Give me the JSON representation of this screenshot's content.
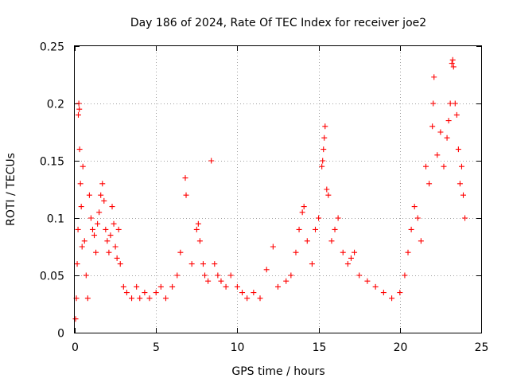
{
  "chart_data": {
    "type": "scatter",
    "title": "Day 186 of 2024, Rate Of TEC Index for receiver joe2",
    "xlabel": "GPS time / hours",
    "ylabel": "ROTI / TECUs",
    "xlim": [
      0,
      25
    ],
    "ylim": [
      0,
      0.25
    ],
    "xticks": [
      0,
      5,
      10,
      15,
      20,
      25
    ],
    "xtick_labels": [
      "0",
      "5",
      "10",
      "15",
      "20",
      "25"
    ],
    "yticks": [
      0,
      0.05,
      0.1,
      0.15,
      0.2,
      0.25
    ],
    "ytick_labels": [
      "0",
      "0.05",
      "0.1",
      "0.15",
      "0.2",
      "0.25"
    ],
    "grid": true,
    "marker": "+",
    "color": "#ff0000",
    "series": [
      {
        "name": "ROTI",
        "points": [
          [
            0.05,
            0.012
          ],
          [
            0.1,
            0.03
          ],
          [
            0.15,
            0.06
          ],
          [
            0.2,
            0.09
          ],
          [
            0.22,
            0.19
          ],
          [
            0.25,
            0.2
          ],
          [
            0.28,
            0.195
          ],
          [
            0.3,
            0.16
          ],
          [
            0.35,
            0.13
          ],
          [
            0.4,
            0.11
          ],
          [
            0.45,
            0.075
          ],
          [
            0.5,
            0.145
          ],
          [
            0.6,
            0.08
          ],
          [
            0.7,
            0.05
          ],
          [
            0.8,
            0.03
          ],
          [
            0.9,
            0.12
          ],
          [
            1.0,
            0.1
          ],
          [
            1.1,
            0.09
          ],
          [
            1.2,
            0.085
          ],
          [
            1.3,
            0.07
          ],
          [
            1.4,
            0.095
          ],
          [
            1.5,
            0.105
          ],
          [
            1.6,
            0.12
          ],
          [
            1.7,
            0.13
          ],
          [
            1.8,
            0.115
          ],
          [
            1.9,
            0.09
          ],
          [
            2.0,
            0.08
          ],
          [
            2.1,
            0.07
          ],
          [
            2.2,
            0.085
          ],
          [
            2.3,
            0.11
          ],
          [
            2.4,
            0.095
          ],
          [
            2.5,
            0.075
          ],
          [
            2.6,
            0.065
          ],
          [
            2.7,
            0.09
          ],
          [
            2.8,
            0.06
          ],
          [
            3.0,
            0.04
          ],
          [
            3.2,
            0.035
          ],
          [
            3.5,
            0.03
          ],
          [
            3.8,
            0.04
          ],
          [
            4.0,
            0.03
          ],
          [
            4.3,
            0.035
          ],
          [
            4.6,
            0.03
          ],
          [
            5.0,
            0.035
          ],
          [
            5.3,
            0.04
          ],
          [
            5.6,
            0.03
          ],
          [
            6.0,
            0.04
          ],
          [
            6.3,
            0.05
          ],
          [
            6.5,
            0.07
          ],
          [
            6.8,
            0.135
          ],
          [
            6.85,
            0.12
          ],
          [
            7.2,
            0.06
          ],
          [
            7.5,
            0.09
          ],
          [
            7.6,
            0.095
          ],
          [
            7.7,
            0.08
          ],
          [
            7.9,
            0.06
          ],
          [
            8.0,
            0.05
          ],
          [
            8.2,
            0.045
          ],
          [
            8.4,
            0.15
          ],
          [
            8.6,
            0.06
          ],
          [
            8.8,
            0.05
          ],
          [
            9.0,
            0.045
          ],
          [
            9.3,
            0.04
          ],
          [
            9.6,
            0.05
          ],
          [
            10.0,
            0.04
          ],
          [
            10.3,
            0.035
          ],
          [
            10.6,
            0.03
          ],
          [
            11.0,
            0.035
          ],
          [
            11.4,
            0.03
          ],
          [
            11.8,
            0.055
          ],
          [
            12.2,
            0.075
          ],
          [
            12.5,
            0.04
          ],
          [
            13.0,
            0.045
          ],
          [
            13.3,
            0.05
          ],
          [
            13.6,
            0.07
          ],
          [
            13.8,
            0.09
          ],
          [
            14.0,
            0.105
          ],
          [
            14.1,
            0.11
          ],
          [
            14.3,
            0.08
          ],
          [
            14.6,
            0.06
          ],
          [
            14.8,
            0.09
          ],
          [
            15.0,
            0.1
          ],
          [
            15.2,
            0.145
          ],
          [
            15.25,
            0.15
          ],
          [
            15.3,
            0.16
          ],
          [
            15.35,
            0.17
          ],
          [
            15.4,
            0.18
          ],
          [
            15.5,
            0.125
          ],
          [
            15.6,
            0.12
          ],
          [
            15.8,
            0.08
          ],
          [
            16.0,
            0.09
          ],
          [
            16.2,
            0.1
          ],
          [
            16.5,
            0.07
          ],
          [
            16.8,
            0.06
          ],
          [
            17.0,
            0.065
          ],
          [
            17.2,
            0.07
          ],
          [
            17.5,
            0.05
          ],
          [
            18.0,
            0.045
          ],
          [
            18.5,
            0.04
          ],
          [
            19.0,
            0.035
          ],
          [
            19.5,
            0.03
          ],
          [
            20.0,
            0.035
          ],
          [
            20.3,
            0.05
          ],
          [
            20.5,
            0.07
          ],
          [
            20.7,
            0.09
          ],
          [
            20.9,
            0.11
          ],
          [
            21.1,
            0.1
          ],
          [
            21.3,
            0.08
          ],
          [
            21.6,
            0.145
          ],
          [
            21.8,
            0.13
          ],
          [
            22.0,
            0.18
          ],
          [
            22.05,
            0.2
          ],
          [
            22.1,
            0.223
          ],
          [
            22.3,
            0.155
          ],
          [
            22.5,
            0.175
          ],
          [
            22.7,
            0.145
          ],
          [
            22.9,
            0.17
          ],
          [
            23.0,
            0.185
          ],
          [
            23.1,
            0.2
          ],
          [
            23.2,
            0.235
          ],
          [
            23.25,
            0.238
          ],
          [
            23.3,
            0.232
          ],
          [
            23.4,
            0.2
          ],
          [
            23.5,
            0.19
          ],
          [
            23.6,
            0.16
          ],
          [
            23.7,
            0.13
          ],
          [
            23.8,
            0.145
          ],
          [
            23.9,
            0.12
          ],
          [
            24.0,
            0.1
          ]
        ]
      }
    ]
  }
}
